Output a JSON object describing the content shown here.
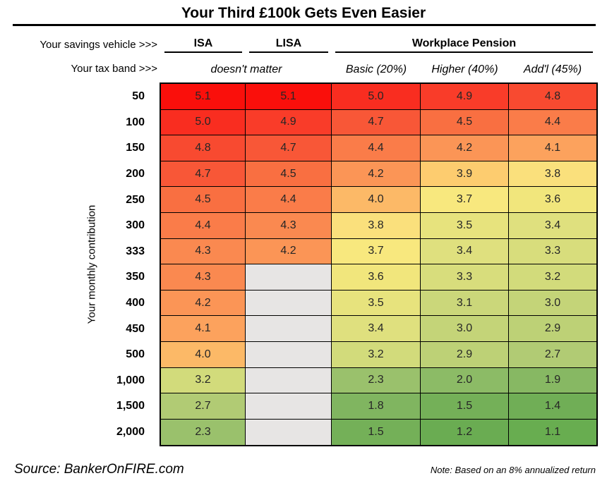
{
  "title": "Your Third £100k Gets Even Easier",
  "header": {
    "savings_vehicle_label": "Your savings vehicle >>>",
    "tax_band_label": "Your tax band >>>",
    "vehicle_isa": "ISA",
    "vehicle_lisa": "LISA",
    "vehicle_pension": "Workplace Pension",
    "band_isa_lisa": "doesn't matter",
    "band_basic": "Basic (20%)",
    "band_higher": "Higher (40%)",
    "band_addl": "Add'l (45%)"
  },
  "footer": {
    "source": "Source: BankerOnFIRE.com",
    "note": "Note: Based on an 8% annualized return"
  },
  "chart_data": {
    "type": "heatmap",
    "title": "Your Third £100k Gets Even Easier",
    "row_axis_label": "Your monthly contribution",
    "columns": [
      "ISA",
      "LISA",
      "Workplace Pension Basic (20%)",
      "Workplace Pension Higher (40%)",
      "Workplace Pension Add'l (45%)"
    ],
    "rows": [
      "50",
      "100",
      "150",
      "200",
      "250",
      "300",
      "333",
      "350",
      "400",
      "450",
      "500",
      "1,000",
      "1,500",
      "2,000"
    ],
    "values": [
      [
        5.1,
        5.1,
        5.0,
        4.9,
        4.8
      ],
      [
        5.0,
        4.9,
        4.7,
        4.5,
        4.4
      ],
      [
        4.8,
        4.7,
        4.4,
        4.2,
        4.1
      ],
      [
        4.7,
        4.5,
        4.2,
        3.9,
        3.8
      ],
      [
        4.5,
        4.4,
        4.0,
        3.7,
        3.6
      ],
      [
        4.4,
        4.3,
        3.8,
        3.5,
        3.4
      ],
      [
        4.3,
        4.2,
        3.7,
        3.4,
        3.3
      ],
      [
        4.3,
        null,
        3.6,
        3.3,
        3.2
      ],
      [
        4.2,
        null,
        3.5,
        3.1,
        3.0
      ],
      [
        4.1,
        null,
        3.4,
        3.0,
        2.9
      ],
      [
        4.0,
        null,
        3.2,
        2.9,
        2.7
      ],
      [
        3.2,
        null,
        2.3,
        2.0,
        1.9
      ],
      [
        2.7,
        null,
        1.8,
        1.5,
        1.4
      ],
      [
        2.3,
        null,
        1.5,
        1.2,
        1.1
      ]
    ],
    "colors": {
      "5.1": "#fa0f0b",
      "5.0": "#f92d20",
      "4.9": "#f93c29",
      "4.8": "#f84a30",
      "4.7": "#f85737",
      "4.5": "#f96f41",
      "4.4": "#fa7c49",
      "4.3": "#fa8950",
      "4.2": "#fb9556",
      "4.1": "#fca25d",
      "4.0": "#fcb967",
      "3.9": "#fdcc6f",
      "3.8": "#fae07c",
      "3.7": "#f8e87e",
      "3.6": "#f1e67c",
      "3.5": "#e7e37d",
      "3.4": "#dfe07e",
      "3.3": "#d8dd7c",
      "3.2": "#d2db7b",
      "3.1": "#cbd77a",
      "3.0": "#c4d478",
      "2.9": "#bdd176",
      "2.7": "#b1cb74",
      "2.3": "#9ac16c",
      "2.0": "#8cbb66",
      "1.9": "#87b863",
      "1.8": "#80b560",
      "1.5": "#74b058",
      "1.4": "#70ae56",
      "1.2": "#6aac52",
      "1.1": "#68ad50"
    },
    "empty_color": "#e7e5e4",
    "grid_color": "#000000"
  }
}
